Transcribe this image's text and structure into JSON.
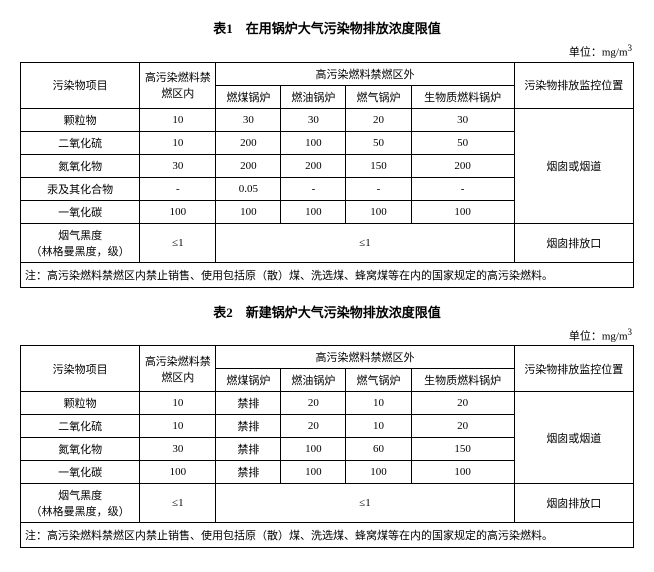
{
  "unit_label": "单位：mg/m",
  "unit_sup": "3",
  "table1": {
    "title": "表1　在用锅炉大气污染物排放浓度限值",
    "headers": {
      "pollutant": "污染物项目",
      "zone_in": "高污染燃料禁燃区内",
      "zone_out": "高污染燃料禁燃区外",
      "coal": "燃煤锅炉",
      "oil": "燃油锅炉",
      "gas": "燃气锅炉",
      "biomass": "生物质燃料锅炉",
      "monitor": "污染物排放监控位置"
    },
    "rows": [
      {
        "name": "颗粒物",
        "in": "10",
        "coal": "30",
        "oil": "30",
        "gas": "20",
        "bio": "30"
      },
      {
        "name": "二氧化硫",
        "in": "10",
        "coal": "200",
        "oil": "100",
        "gas": "50",
        "bio": "50"
      },
      {
        "name": "氮氧化物",
        "in": "30",
        "coal": "200",
        "oil": "200",
        "gas": "150",
        "bio": "200"
      },
      {
        "name": "汞及其化合物",
        "in": "-",
        "coal": "0.05",
        "oil": "-",
        "gas": "-",
        "bio": "-"
      },
      {
        "name": "一氧化碳",
        "in": "100",
        "coal": "100",
        "oil": "100",
        "gas": "100",
        "bio": "100"
      }
    ],
    "monitor1": "烟囱或烟道",
    "smoke_row_label1": "烟气黑度",
    "smoke_row_label2": "（林格曼黑度，级）",
    "smoke_val": "≤1",
    "smoke_monitor": "烟囱排放口",
    "note": "注：高污染燃料禁燃区内禁止销售、使用包括原（散）煤、洗选煤、蜂窝煤等在内的国家规定的高污染燃料。"
  },
  "table2": {
    "title": "表2　新建锅炉大气污染物排放浓度限值",
    "headers": {
      "pollutant": "污染物项目",
      "zone_in": "高污染燃料禁燃区内",
      "zone_out": "高污染燃料禁燃区外",
      "coal": "燃煤锅炉",
      "oil": "燃油锅炉",
      "gas": "燃气锅炉",
      "biomass": "生物质燃料锅炉",
      "monitor": "污染物排放监控位置"
    },
    "rows": [
      {
        "name": "颗粒物",
        "in": "10",
        "coal": "禁排",
        "oil": "20",
        "gas": "10",
        "bio": "20"
      },
      {
        "name": "二氧化硫",
        "in": "10",
        "coal": "禁排",
        "oil": "20",
        "gas": "10",
        "bio": "20"
      },
      {
        "name": "氮氧化物",
        "in": "30",
        "coal": "禁排",
        "oil": "100",
        "gas": "60",
        "bio": "150"
      },
      {
        "name": "一氧化碳",
        "in": "100",
        "coal": "禁排",
        "oil": "100",
        "gas": "100",
        "bio": "100"
      }
    ],
    "monitor1": "烟囱或烟道",
    "smoke_row_label1": "烟气黑度",
    "smoke_row_label2": "（林格曼黑度，级）",
    "smoke_val": "≤1",
    "smoke_monitor": "烟囱排放口",
    "note": "注：高污染燃料禁燃区内禁止销售、使用包括原（散）煤、洗选煤、蜂窝煤等在内的国家规定的高污染燃料。"
  }
}
